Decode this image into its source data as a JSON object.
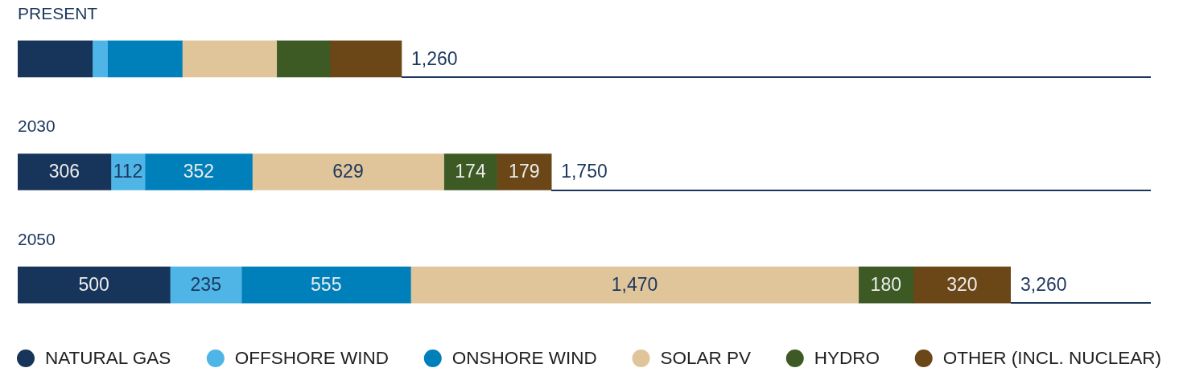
{
  "chart_data": {
    "type": "bar",
    "orientation": "horizontal",
    "stacked": true,
    "tick_labels": "y",
    "legend": "bottom",
    "categories": [
      "PRESENT",
      "2030",
      "2050"
    ],
    "series": [
      {
        "name": "NATURAL GAS",
        "color": "#17345a",
        "values": [
          245,
          306,
          500
        ],
        "value_labels": [
          null,
          "306",
          "500"
        ]
      },
      {
        "name": "OFFSHORE WIND",
        "color": "#4eb5e6",
        "values": [
          50,
          112,
          235
        ],
        "value_labels": [
          null,
          "112",
          "235"
        ]
      },
      {
        "name": "ONSHORE WIND",
        "color": "#0080bb",
        "values": [
          245,
          352,
          555
        ],
        "value_labels": [
          null,
          "352",
          "555"
        ]
      },
      {
        "name": "SOLAR PV",
        "color": "#e0c49a",
        "values": [
          310,
          629,
          1470
        ],
        "value_labels": [
          null,
          "629",
          "1,470"
        ]
      },
      {
        "name": "HYDRO",
        "color": "#3d5a25",
        "values": [
          175,
          174,
          180
        ],
        "value_labels": [
          null,
          "174",
          "180"
        ]
      },
      {
        "name": "OTHER (INCL. NUCLEAR)",
        "color": "#6b4718",
        "values": [
          235,
          179,
          320
        ],
        "value_labels": [
          null,
          "179",
          "320"
        ]
      }
    ],
    "totals": [
      "1,260",
      "1,750",
      "3,260"
    ]
  }
}
